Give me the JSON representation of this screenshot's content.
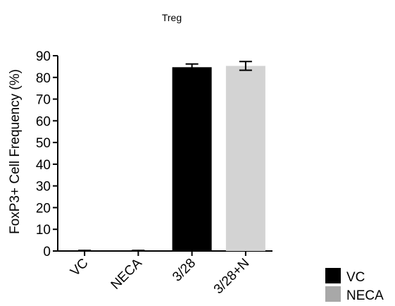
{
  "chart_data": {
    "type": "bar",
    "title": "Treg",
    "xlabel": "",
    "ylabel": "FoxP3+ Cell Frequency (%)",
    "ylim": [
      0,
      90
    ],
    "yticks": [
      0,
      10,
      20,
      30,
      40,
      50,
      60,
      70,
      80,
      90
    ],
    "categories": [
      "VC",
      "NECA",
      "3/28",
      "3/28+N"
    ],
    "values": [
      0.2,
      0.2,
      84.7,
      85.3
    ],
    "errors": [
      0.1,
      0.1,
      1.5,
      2.0
    ],
    "bar_colors": [
      "#000000",
      "#000000",
      "#000000",
      "#d3d3d3"
    ],
    "grid": false,
    "legend": {
      "placement": "bottom-right",
      "entries": [
        {
          "label": "VC",
          "color": "#000000"
        },
        {
          "label": "NECA",
          "color": "#a8a8a8"
        }
      ]
    }
  }
}
